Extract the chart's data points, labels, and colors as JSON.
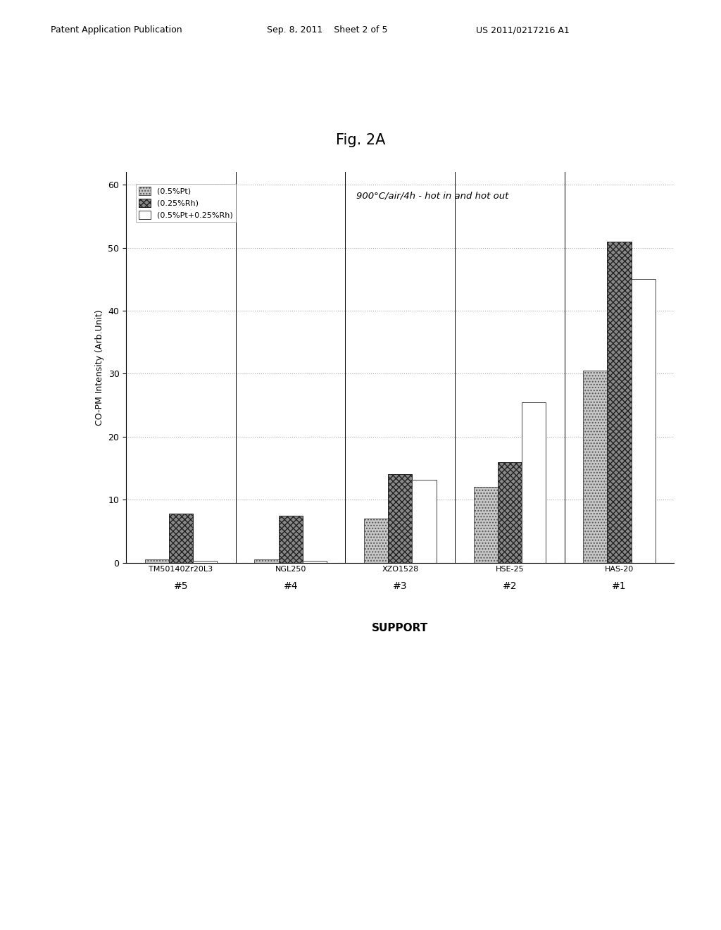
{
  "title": "Fig. 2A",
  "annotation": "900°C/air/4h - hot in and hot out",
  "ylabel": "CO-PM Intensity (Arb.Unit)",
  "xlabel": "SUPPORT",
  "header_left": "Patent Application Publication",
  "header_mid": "Sep. 8, 2011    Sheet 2 of 5",
  "header_right": "US 2011/0217216 A1",
  "groups": [
    {
      "label": "TM50140Zr20L3",
      "number": "#5"
    },
    {
      "label": "NGL250",
      "number": "#4"
    },
    {
      "label": "XZO1528",
      "number": "#3"
    },
    {
      "label": "HSE-25",
      "number": "#2"
    },
    {
      "label": "HAS-20",
      "number": "#1"
    }
  ],
  "series": [
    {
      "name": "(0.5%Pt)",
      "hatch": "....",
      "facecolor": "#c8c8c8",
      "edgecolor": "#555555"
    },
    {
      "name": "(0.25%Rh)",
      "hatch": "xxxx",
      "facecolor": "#888888",
      "edgecolor": "#222222"
    },
    {
      "name": "(0.5%Pt+0.25%Rh)",
      "hatch": "",
      "facecolor": "white",
      "edgecolor": "#444444"
    }
  ],
  "values": [
    [
      0.5,
      7.8,
      0.3
    ],
    [
      0.5,
      7.5,
      0.3
    ],
    [
      7.0,
      14.0,
      13.2
    ],
    [
      12.0,
      16.0,
      25.5
    ],
    [
      30.5,
      51.0,
      45.0
    ]
  ],
  "ylim": [
    0,
    62
  ],
  "yticks": [
    0,
    10,
    20,
    30,
    40,
    50,
    60
  ],
  "bar_width": 0.22,
  "background_color": "#ffffff",
  "grid_color": "#aaaaaa"
}
